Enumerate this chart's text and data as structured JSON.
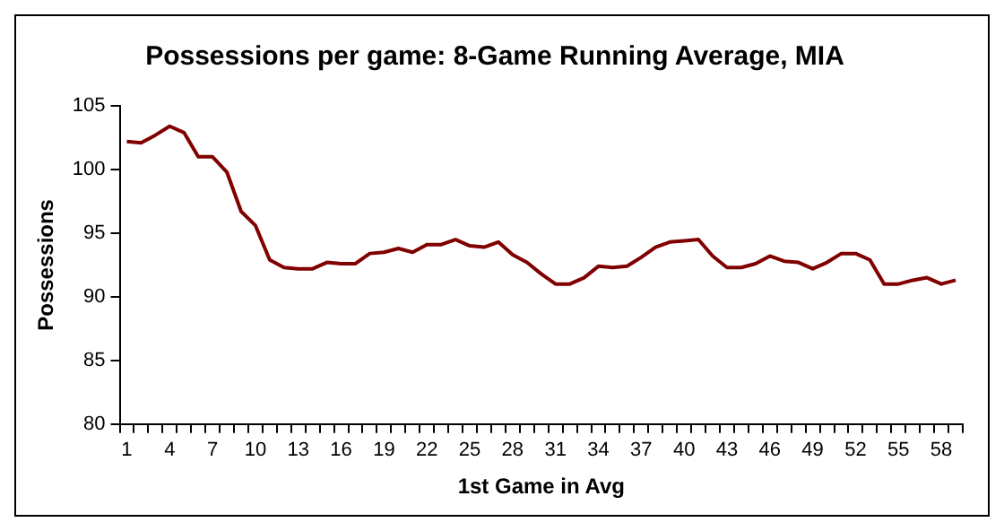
{
  "chart_data": {
    "type": "line",
    "title": "Possessions per game: 8-Game Running Average, MIA",
    "xlabel": "1st Game in Avg",
    "ylabel": "Possessions",
    "categories": [
      "1",
      null,
      null,
      "4",
      null,
      null,
      "7",
      null,
      null,
      "10",
      null,
      null,
      "13",
      null,
      null,
      "16",
      null,
      null,
      "19",
      null,
      null,
      "22",
      null,
      null,
      "25",
      null,
      null,
      "28",
      null,
      null,
      "31",
      null,
      null,
      "34",
      null,
      null,
      "37",
      null,
      null,
      "40",
      null,
      null,
      "43",
      null,
      null,
      "46",
      null,
      null,
      "49",
      null,
      null,
      "52",
      null,
      null,
      "55",
      null,
      null,
      "58",
      null
    ],
    "series": [
      {
        "color": "#800000",
        "values": [
          102.2,
          102.1,
          102.7,
          103.4,
          102.9,
          101.0,
          101.0,
          99.8,
          96.7,
          95.6,
          92.9,
          92.3,
          92.2,
          92.2,
          92.7,
          92.6,
          92.6,
          93.4,
          93.5,
          93.8,
          93.5,
          94.1,
          94.1,
          94.5,
          94.0,
          93.9,
          94.3,
          93.3,
          92.7,
          91.8,
          91.0,
          91.0,
          91.5,
          92.4,
          92.3,
          92.4,
          93.1,
          93.9,
          94.3,
          94.4,
          94.5,
          93.2,
          92.3,
          92.3,
          92.6,
          93.2,
          92.8,
          92.7,
          92.2,
          92.7,
          93.4,
          93.4,
          92.9,
          91.0,
          91.0,
          91.3,
          91.5,
          91.0,
          91.3
        ]
      }
    ],
    "ylim": [
      80,
      105
    ],
    "yticks": [
      80,
      85,
      90,
      95,
      100,
      105
    ],
    "grid": false,
    "legend": false,
    "marker": "none",
    "line_style": "solid"
  }
}
